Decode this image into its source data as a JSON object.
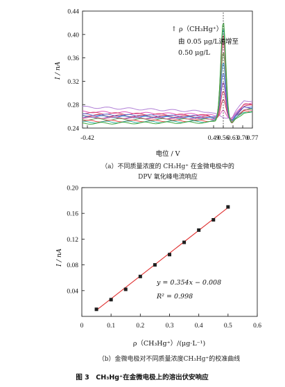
{
  "figure_caption": "图 3　CH₃Hg⁺在金微电极上的溶出伏安响应",
  "chart_data": [
    {
      "type": "line",
      "panel_caption_line1": "（a）不同质量浓度的 CH₃Hg⁺ 在金微电极中的",
      "panel_caption_line2": "DPV 氧化峰电流响应",
      "xlabel": "电位 / V",
      "ylabel": "I / nA",
      "xlim": [
        -0.455,
        0.77
      ],
      "ylim": [
        0.24,
        0.44
      ],
      "xticks": [
        -0.42,
        0.49,
        0.56,
        0.63,
        0.7,
        0.77
      ],
      "xtick_labels": [
        "-0.42",
        "0.49",
        "0.56",
        "0.63",
        "0.70",
        "0.77"
      ],
      "yticks": [
        0.24,
        0.28,
        0.32,
        0.36,
        0.4,
        0.44
      ],
      "ytick_labels": [
        "0.24",
        "0.28",
        "0.32",
        "0.36",
        "0.40",
        "0.44"
      ],
      "peak_marker_x": 0.56,
      "annotation_line1": "↑ ρ（CH₃Hg⁺）",
      "annotation_line2": "由 0.05 μg/L递增至",
      "annotation_line3": "0.50 μg/L",
      "series": [
        {
          "color": "#b07fd6",
          "peak": 0.262,
          "left": 0.276,
          "dip": 0.262,
          "right": 0.287
        },
        {
          "color": "#e052b8",
          "peak": 0.275,
          "left": 0.268,
          "dip": 0.259,
          "right": 0.282
        },
        {
          "color": "#c4304f",
          "peak": 0.292,
          "left": 0.262,
          "dip": 0.257,
          "right": 0.278
        },
        {
          "color": "#d84a6a",
          "peak": 0.305,
          "left": 0.266,
          "dip": 0.258,
          "right": 0.28
        },
        {
          "color": "#8f3fb0",
          "peak": 0.32,
          "left": 0.258,
          "dip": 0.256,
          "right": 0.275
        },
        {
          "color": "#5a6fd8",
          "peak": 0.338,
          "left": 0.263,
          "dip": 0.257,
          "right": 0.277
        },
        {
          "color": "#3a8fd0",
          "peak": 0.356,
          "left": 0.26,
          "dip": 0.255,
          "right": 0.273
        },
        {
          "color": "#6a9a4a",
          "peak": 0.372,
          "left": 0.255,
          "dip": 0.254,
          "right": 0.271
        },
        {
          "color": "#e06f9a",
          "peak": 0.388,
          "left": 0.258,
          "dip": 0.255,
          "right": 0.27
        },
        {
          "color": "#e04040",
          "peak": 0.402,
          "left": 0.252,
          "dip": 0.253,
          "right": 0.269
        },
        {
          "color": "#2fb0a0",
          "peak": 0.414,
          "left": 0.25,
          "dip": 0.252,
          "right": 0.268
        },
        {
          "color": "#3aa53a",
          "peak": 0.425,
          "left": 0.248,
          "dip": 0.251,
          "right": 0.267
        }
      ]
    },
    {
      "type": "scatter",
      "panel_caption": "（b）金微电极对不同质量浓度CH₃Hg⁺的校准曲线",
      "xlabel": "ρ（CH₃Hg⁺）/(μg·L⁻¹)",
      "ylabel": "I / nA",
      "xlim": [
        0,
        0.6
      ],
      "ylim": [
        0,
        0.2
      ],
      "xticks": [
        0,
        0.1,
        0.2,
        0.3,
        0.4,
        0.5,
        0.6
      ],
      "xtick_labels": [
        "0",
        "0.1",
        "0.2",
        "0.3",
        "0.4",
        "0.5",
        "0.6"
      ],
      "yticks": [
        0.04,
        0.08,
        0.12,
        0.16,
        0.2
      ],
      "ytick_labels": [
        "0.04",
        "0.08",
        "0.12",
        "0.16",
        "0.20"
      ],
      "x": [
        0.05,
        0.1,
        0.15,
        0.2,
        0.25,
        0.3,
        0.35,
        0.4,
        0.45,
        0.5
      ],
      "y": [
        0.011,
        0.026,
        0.042,
        0.062,
        0.08,
        0.096,
        0.115,
        0.134,
        0.15,
        0.17
      ],
      "fit": {
        "slope": 0.354,
        "intercept": -0.008
      },
      "equation": "y = 0.354x − 0.008",
      "r2": "R² = 0.998",
      "marker_color": "#1f1f1f",
      "line_color": "#e03030"
    }
  ]
}
